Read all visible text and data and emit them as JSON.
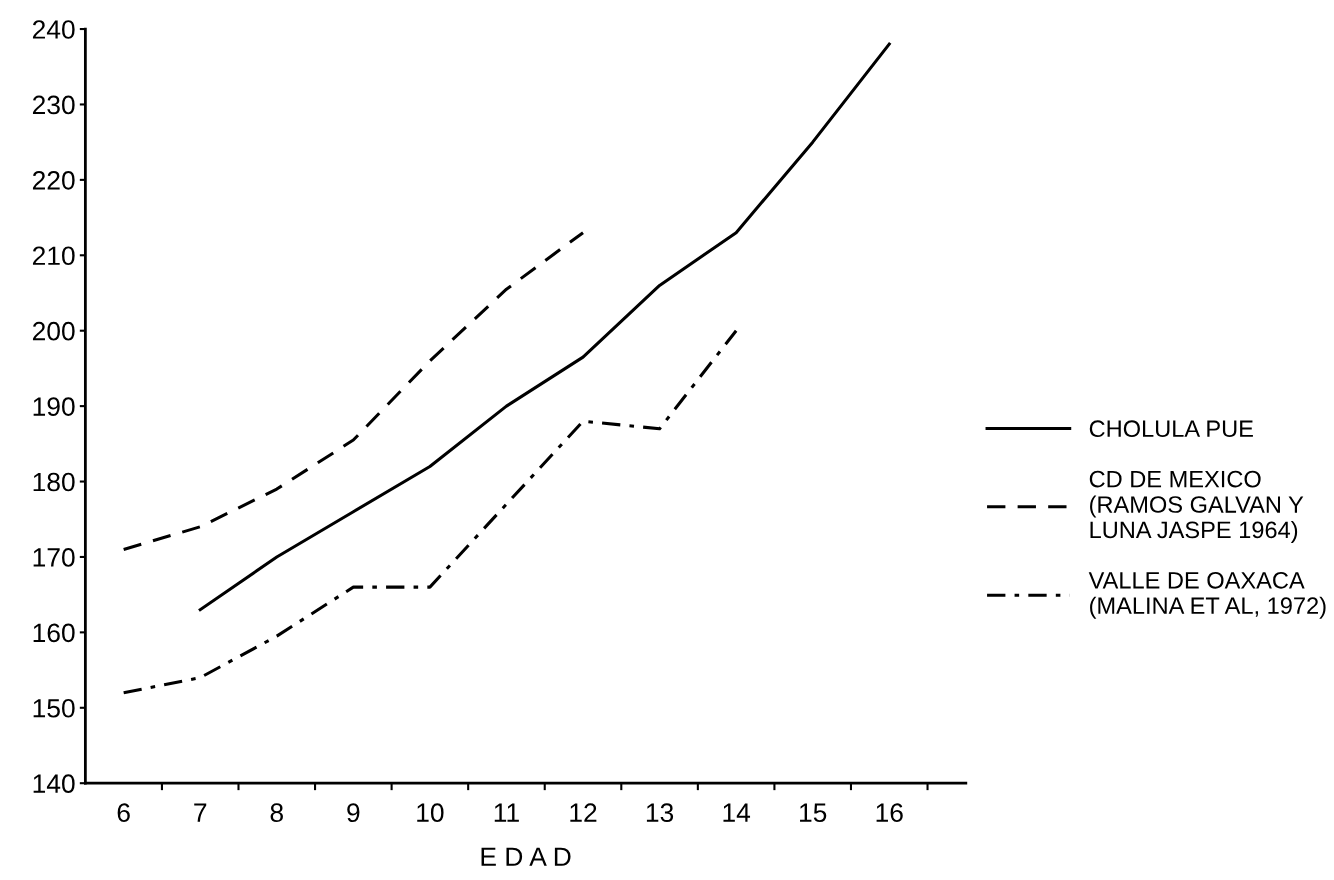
{
  "chart_data": {
    "type": "line",
    "xlabel": "E D A D",
    "categories": [
      "6",
      "7",
      "8",
      "9",
      "10",
      "11",
      "12",
      "13",
      "14",
      "15",
      "16"
    ],
    "ylim": [
      140,
      240
    ],
    "yticks": [
      140,
      150,
      160,
      170,
      180,
      190,
      200,
      210,
      220,
      230,
      240
    ],
    "grid": false,
    "legend": "right",
    "marker": "none",
    "series": [
      {
        "name": "CHOLULA PUE",
        "color": "#000000",
        "line_style": "solid",
        "values": [
          null,
          163,
          170,
          176,
          182,
          190,
          196.5,
          206,
          213,
          225,
          238
        ]
      },
      {
        "name": "CD DE MEXICO\n(RAMOS GALVAN Y\nLUNA JASPE 1964)",
        "color": "#000000",
        "line_style": "dashed",
        "values": [
          171,
          174,
          179,
          185.5,
          196,
          205.5,
          213,
          null,
          null,
          null,
          null
        ]
      },
      {
        "name": "VALLE DE OAXACA\n(MALINA ET AL, 1972)",
        "color": "#000000",
        "line_style": "dashdot",
        "values": [
          152,
          154,
          159.5,
          166,
          166,
          177,
          188,
          187,
          200,
          null,
          null
        ]
      }
    ]
  }
}
